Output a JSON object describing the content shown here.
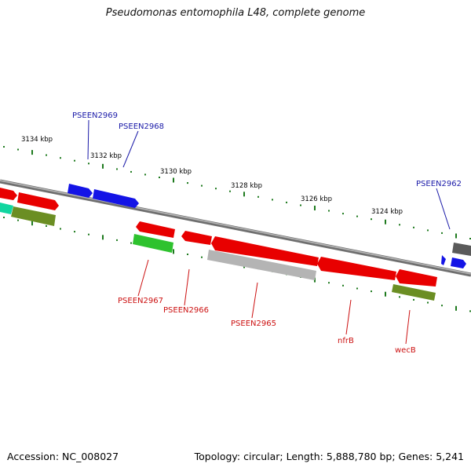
{
  "title": "Pseudomonas entomophila L48, complete genome",
  "footer": {
    "accession": "Accession: NC_008027",
    "summary": "Topology: circular; Length: 5,888,780 bp; Genes: 5,241"
  },
  "colors": {
    "backbone": "#7f7f7f",
    "tick": "#1e7a1e",
    "forward_label": "#1a1aa8",
    "reverse_label": "#cc1111"
  },
  "tick_labels": [
    "3134 kbp",
    "3132 kbp",
    "3130 kbp",
    "3128 kbp",
    "3126 kbp",
    "3124 kbp"
  ],
  "gene_labels": {
    "forward": [
      "PSEEN2969",
      "PSEEN2968",
      "PSEEN2962"
    ],
    "reverse": [
      "PSEEN2967",
      "PSEEN2966",
      "PSEEN2965",
      "nfrB",
      "wecB"
    ]
  }
}
